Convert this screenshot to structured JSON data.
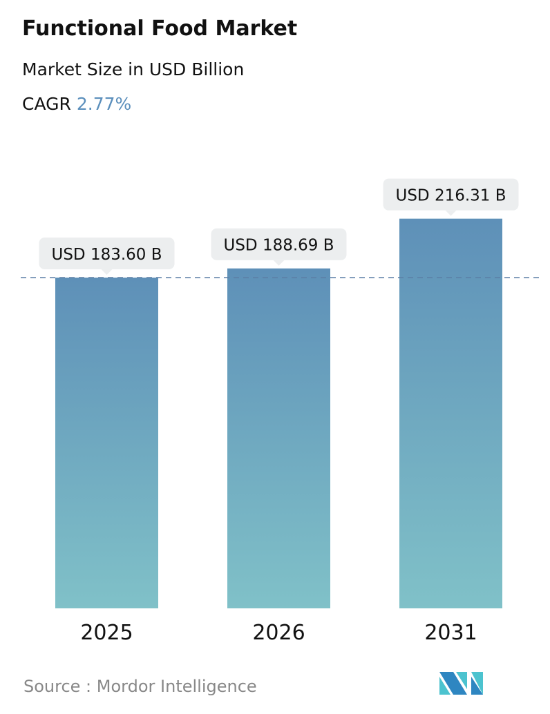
{
  "header": {
    "title": "Functional Food Market",
    "subtitle": "Market Size in USD Billion",
    "cagr_label": "CAGR",
    "cagr_value": "2.77%"
  },
  "chart_data": {
    "type": "bar",
    "categories": [
      "2025",
      "2026",
      "2031"
    ],
    "values": [
      183.6,
      188.69,
      216.31
    ],
    "data_labels": [
      "USD 183.60 B",
      "USD 188.69 B",
      "USD 216.31 B"
    ],
    "title": "Functional Food Market",
    "ylabel": "",
    "xlabel": "",
    "ylim": [
      0,
      216.31
    ],
    "grid": false,
    "reference_line": {
      "value": 183.6,
      "style": "dashed"
    },
    "colors": {
      "bar_top": "#5e90b8",
      "bar_bottom": "#80c1c8",
      "reference_line": "#5b7fa6",
      "label_bg": "#eceeef"
    }
  },
  "footer": {
    "source": "Source :  Mordor Intelligence",
    "logo_text": "MI"
  }
}
